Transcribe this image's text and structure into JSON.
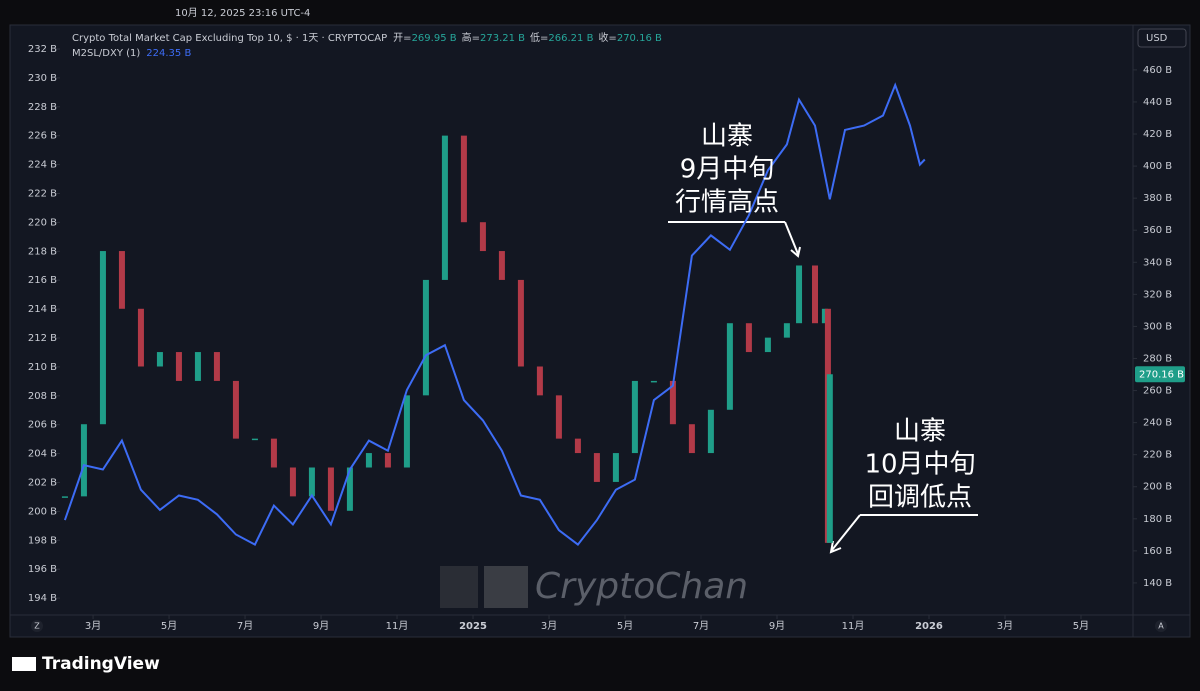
{
  "header": {
    "date": "10月 12, 2025 23:16 UTC-4",
    "currency": "USD",
    "brand": "TradingView",
    "watermark": "CryptoChan",
    "scale_left": "Z",
    "scale_right": "A"
  },
  "chart_data": {
    "type": "candlestick",
    "ohlc": [
      {
        "label": "开=",
        "text": "269.95 B"
      },
      {
        "label": "高=",
        "text": "273.21 B"
      },
      {
        "label": "低=",
        "text": "266.21 B"
      },
      {
        "label": "收=",
        "text": "270.16 B"
      }
    ],
    "price_tag": "270.16 B",
    "series": [
      {
        "name": "Crypto Total Market Cap Excluding Top 10, $ · 1天 · CRYPTOCAP",
        "axis": "y2",
        "up_color": "#1f9e89",
        "down_color": "#b23a48",
        "x": [
          1.26,
          1.76,
          2.26,
          2.76,
          3.26,
          3.76,
          4.26,
          4.76,
          5.26,
          5.76,
          6.26,
          6.76,
          7.26,
          7.76,
          8.26,
          8.76,
          9.26,
          9.76,
          10.26,
          10.76,
          11.26,
          11.76,
          12.26,
          12.76,
          13.26,
          13.76,
          14.26,
          14.76,
          15.26,
          15.76,
          16.26,
          16.76,
          17.26,
          17.76,
          18.26,
          18.76,
          19.26,
          19.76,
          20.26,
          20.58,
          21.0,
          21.26,
          21.34,
          21.39
        ],
        "values": [
          194,
          239,
          347,
          311,
          275,
          284,
          266,
          284,
          266,
          230,
          230,
          212,
          194,
          212,
          185,
          212,
          221,
          212,
          257,
          329,
          419,
          365,
          347,
          329,
          275,
          257,
          230,
          221,
          203,
          221,
          266,
          266,
          239,
          221,
          248,
          302,
          284,
          293,
          302,
          338,
          302,
          311,
          165,
          270.16
        ]
      },
      {
        "name": "M2SL/DXY (1)",
        "last": "224.35 B",
        "axis": "y",
        "color": "#3d6cf5",
        "x": [
          1.26,
          1.76,
          2.26,
          2.76,
          3.26,
          3.76,
          4.26,
          4.76,
          5.26,
          5.76,
          6.26,
          6.76,
          7.26,
          7.76,
          8.26,
          8.76,
          9.26,
          9.76,
          10.26,
          10.76,
          11.26,
          11.76,
          12.26,
          12.76,
          13.26,
          13.76,
          14.26,
          14.76,
          15.26,
          15.76,
          16.26,
          16.76,
          17.26,
          17.76,
          18.26,
          18.76,
          19.26,
          19.76,
          20.26,
          20.58,
          21.0,
          21.39,
          21.79,
          22.29,
          22.79,
          23.11,
          23.5,
          23.76,
          23.89
        ],
        "values": [
          199.4,
          203.2,
          202.9,
          204.9,
          201.5,
          200.1,
          201.1,
          200.8,
          199.8,
          198.4,
          197.7,
          200.4,
          199.1,
          201.1,
          199.1,
          202.9,
          204.9,
          204.2,
          208.4,
          210.8,
          211.5,
          207.7,
          206.3,
          204.2,
          201.1,
          200.8,
          198.7,
          197.7,
          199.4,
          201.5,
          202.2,
          207.7,
          208.7,
          217.7,
          219.1,
          218.1,
          220.5,
          223.6,
          225.4,
          228.5,
          226.7,
          221.6,
          226.4,
          226.7,
          227.4,
          229.5,
          226.7,
          224,
          224.35
        ]
      }
    ],
    "xlim": [
      1.13,
      29.29
    ],
    "xticks": [
      {
        "value": 2,
        "label": "3月"
      },
      {
        "value": 4,
        "label": "5月"
      },
      {
        "value": 6,
        "label": "7月"
      },
      {
        "value": 8,
        "label": "9月"
      },
      {
        "value": 10,
        "label": "11月"
      },
      {
        "value": 12,
        "label": "2025"
      },
      {
        "value": 14,
        "label": "3月"
      },
      {
        "value": 16,
        "label": "5月"
      },
      {
        "value": 18,
        "label": "7月"
      },
      {
        "value": 20,
        "label": "9月"
      },
      {
        "value": 22,
        "label": "11月"
      },
      {
        "value": 24,
        "label": "2026"
      },
      {
        "value": 26,
        "label": "3月"
      },
      {
        "value": 28,
        "label": "5月"
      }
    ],
    "ylim": [
      192.83,
      233.66
    ],
    "yticks": [
      {
        "value": 194,
        "label": "194 B"
      },
      {
        "value": 196,
        "label": "196 B"
      },
      {
        "value": 198,
        "label": "198 B"
      },
      {
        "value": 200,
        "label": "200 B"
      },
      {
        "value": 202,
        "label": "202 B"
      },
      {
        "value": 204,
        "label": "204 B"
      },
      {
        "value": 206,
        "label": "206 B"
      },
      {
        "value": 208,
        "label": "208 B"
      },
      {
        "value": 210,
        "label": "210 B"
      },
      {
        "value": 212,
        "label": "212 B"
      },
      {
        "value": 214,
        "label": "214 B"
      },
      {
        "value": 216,
        "label": "216 B"
      },
      {
        "value": 218,
        "label": "218 B"
      },
      {
        "value": 220,
        "label": "220 B"
      },
      {
        "value": 222,
        "label": "222 B"
      },
      {
        "value": 224,
        "label": "224 B"
      },
      {
        "value": 226,
        "label": "226 B"
      },
      {
        "value": 228,
        "label": "228 B"
      },
      {
        "value": 230,
        "label": "230 B"
      },
      {
        "value": 232,
        "label": "232 B"
      }
    ],
    "y2lim": [
      120,
      488
    ],
    "y2ticks": [
      {
        "value": 140,
        "label": "140 B"
      },
      {
        "value": 160,
        "label": "160 B"
      },
      {
        "value": 180,
        "label": "180 B"
      },
      {
        "value": 200,
        "label": "200 B"
      },
      {
        "value": 220,
        "label": "220 B"
      },
      {
        "value": 240,
        "label": "240 B"
      },
      {
        "value": 260,
        "label": "260 B"
      },
      {
        "value": 280,
        "label": "280 B"
      },
      {
        "value": 300,
        "label": "300 B"
      },
      {
        "value": 320,
        "label": "320 B"
      },
      {
        "value": 340,
        "label": "340 B"
      },
      {
        "value": 360,
        "label": "360 B"
      },
      {
        "value": 380,
        "label": "380 B"
      },
      {
        "value": 400,
        "label": "400 B"
      },
      {
        "value": 420,
        "label": "420 B"
      },
      {
        "value": 440,
        "label": "440 B"
      },
      {
        "value": 460,
        "label": "460 B"
      }
    ],
    "grid": false,
    "annotations": [
      {
        "lines": [
          "山寨",
          "9月中旬",
          "行情高点"
        ]
      },
      {
        "lines": [
          "山寨",
          "10月中旬",
          "回调低点"
        ]
      }
    ]
  }
}
